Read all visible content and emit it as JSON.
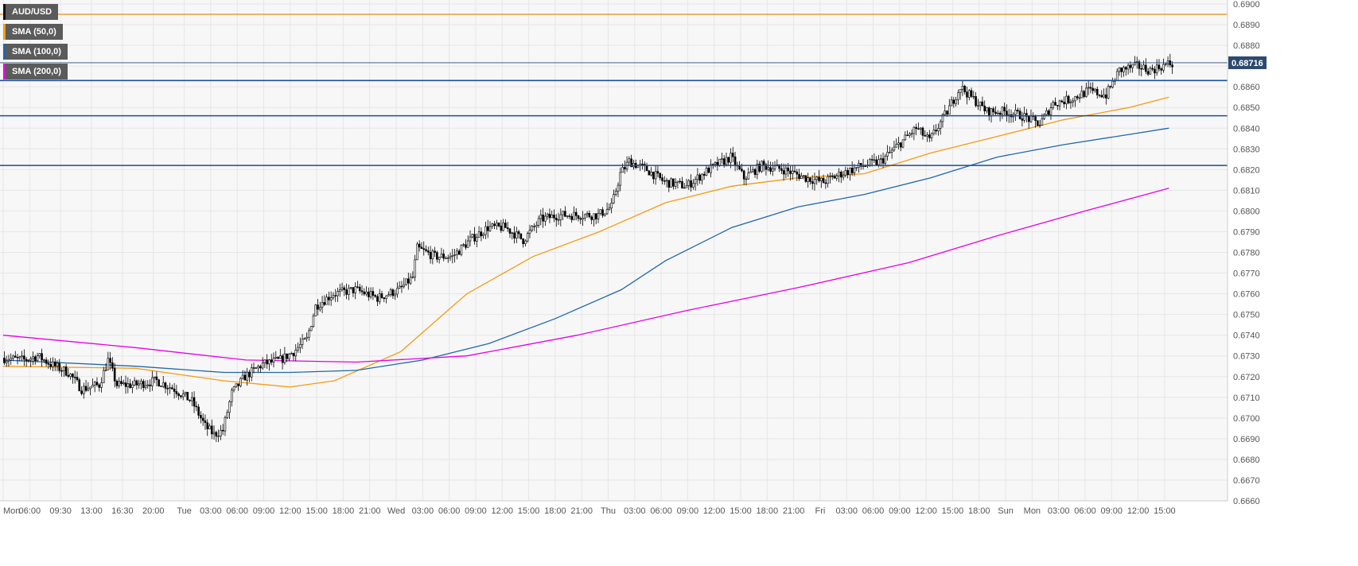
{
  "legend": [
    {
      "label": "AUD/USD",
      "color": "#111111"
    },
    {
      "label": "SMA (50,0)",
      "color": "#f39c12"
    },
    {
      "label": "SMA (100,0)",
      "color": "#2166ac"
    },
    {
      "label": "SMA (200,0)",
      "color": "#e600e6"
    }
  ],
  "price_tag": "0.68716",
  "colors": {
    "background": "#f7f7f7",
    "grid": "#e6e6e6",
    "candle_body_up": "#ffffff",
    "candle_body_down": "#000000",
    "candle_wick": "#000000",
    "sma50": "#f39c12",
    "sma100": "#2166ac",
    "sma200": "#e600e6",
    "resistance_line": "#1c4e94",
    "top_line": "#e8891a",
    "price_tag_bg": "#2c4a6e"
  },
  "chart_data": {
    "type": "candlestick",
    "title": "",
    "symbol": "AUD/USD",
    "ylim": [
      0.666,
      0.69
    ],
    "y_ticks": [
      "0.6660",
      "0.6670",
      "0.6680",
      "0.6690",
      "0.6700",
      "0.6710",
      "0.6720",
      "0.6730",
      "0.6740",
      "0.6750",
      "0.6760",
      "0.6770",
      "0.6780",
      "0.6790",
      "0.6800",
      "0.6810",
      "0.6820",
      "0.6830",
      "0.6840",
      "0.6850",
      "0.6860",
      "0.6870",
      "0.6880",
      "0.6890",
      "0.6900"
    ],
    "x_ticks": [
      "Mon",
      "06:00",
      "09:30",
      "13:00",
      "16:30",
      "20:00",
      "Tue",
      "03:00",
      "06:00",
      "09:00",
      "12:00",
      "15:00",
      "18:00",
      "21:00",
      "Wed",
      "03:00",
      "06:00",
      "09:00",
      "12:00",
      "15:00",
      "18:00",
      "21:00",
      "Thu",
      "03:00",
      "06:00",
      "09:00",
      "12:00",
      "15:00",
      "18:00",
      "21:00",
      "Fri",
      "03:00",
      "06:00",
      "09:00",
      "12:00",
      "15:00",
      "18:00",
      "Sun",
      "Mon",
      "03:00",
      "06:00",
      "09:00",
      "12:00",
      "15:00"
    ],
    "x_tick_index": [
      0,
      12,
      26,
      40,
      54,
      68,
      82,
      94,
      106,
      118,
      130,
      142,
      154,
      166,
      178,
      190,
      202,
      214,
      226,
      238,
      250,
      262,
      274,
      286,
      298,
      310,
      322,
      334,
      346,
      358,
      370,
      382,
      394,
      406,
      418,
      430,
      442,
      454,
      466,
      478,
      490,
      502,
      514,
      526
    ],
    "horizontal_lines": [
      {
        "value": 0.6895,
        "role": "top"
      },
      {
        "value": 0.6863,
        "role": "resistance"
      },
      {
        "value": 0.6846,
        "role": "support"
      },
      {
        "value": 0.6822,
        "role": "support"
      }
    ],
    "current_price": 0.68716,
    "anchors": [
      [
        0,
        0.6729
      ],
      [
        10,
        0.6728
      ],
      [
        16,
        0.673
      ],
      [
        22,
        0.6726
      ],
      [
        30,
        0.6722
      ],
      [
        36,
        0.6714
      ],
      [
        44,
        0.6716
      ],
      [
        48,
        0.6728
      ],
      [
        52,
        0.6716
      ],
      [
        60,
        0.6716
      ],
      [
        70,
        0.6718
      ],
      [
        78,
        0.6714
      ],
      [
        86,
        0.6708
      ],
      [
        92,
        0.6696
      ],
      [
        96,
        0.6692
      ],
      [
        100,
        0.6694
      ],
      [
        104,
        0.6712
      ],
      [
        110,
        0.672
      ],
      [
        118,
        0.6726
      ],
      [
        126,
        0.6728
      ],
      [
        132,
        0.6732
      ],
      [
        138,
        0.6738
      ],
      [
        142,
        0.6754
      ],
      [
        150,
        0.676
      ],
      [
        160,
        0.6762
      ],
      [
        170,
        0.6758
      ],
      [
        180,
        0.6762
      ],
      [
        186,
        0.6768
      ],
      [
        188,
        0.6782
      ],
      [
        196,
        0.6778
      ],
      [
        204,
        0.6778
      ],
      [
        212,
        0.6786
      ],
      [
        220,
        0.6792
      ],
      [
        228,
        0.6792
      ],
      [
        236,
        0.6786
      ],
      [
        244,
        0.6796
      ],
      [
        252,
        0.6798
      ],
      [
        262,
        0.6798
      ],
      [
        270,
        0.6798
      ],
      [
        276,
        0.6802
      ],
      [
        280,
        0.6818
      ],
      [
        284,
        0.6824
      ],
      [
        292,
        0.682
      ],
      [
        300,
        0.6814
      ],
      [
        310,
        0.6812
      ],
      [
        320,
        0.682
      ],
      [
        330,
        0.6826
      ],
      [
        336,
        0.6816
      ],
      [
        344,
        0.6822
      ],
      [
        354,
        0.682
      ],
      [
        364,
        0.6816
      ],
      [
        372,
        0.6814
      ],
      [
        380,
        0.6818
      ],
      [
        390,
        0.6822
      ],
      [
        398,
        0.6824
      ],
      [
        406,
        0.6832
      ],
      [
        414,
        0.684
      ],
      [
        420,
        0.6834
      ],
      [
        428,
        0.6848
      ],
      [
        434,
        0.686
      ],
      [
        440,
        0.6854
      ],
      [
        446,
        0.6848
      ],
      [
        454,
        0.6848
      ],
      [
        462,
        0.6846
      ],
      [
        470,
        0.6842
      ],
      [
        476,
        0.6852
      ],
      [
        484,
        0.6854
      ],
      [
        492,
        0.6858
      ],
      [
        500,
        0.6856
      ],
      [
        506,
        0.6868
      ],
      [
        514,
        0.687
      ],
      [
        520,
        0.6868
      ],
      [
        528,
        0.6871
      ]
    ],
    "sma50": [
      [
        0,
        0.6725
      ],
      [
        60,
        0.6724
      ],
      [
        100,
        0.6718
      ],
      [
        130,
        0.6715
      ],
      [
        150,
        0.6718
      ],
      [
        180,
        0.6732
      ],
      [
        210,
        0.676
      ],
      [
        240,
        0.6778
      ],
      [
        270,
        0.679
      ],
      [
        300,
        0.6804
      ],
      [
        330,
        0.6812
      ],
      [
        360,
        0.6816
      ],
      [
        390,
        0.6818
      ],
      [
        420,
        0.6828
      ],
      [
        450,
        0.6836
      ],
      [
        480,
        0.6844
      ],
      [
        510,
        0.685
      ],
      [
        528,
        0.6855
      ]
    ],
    "sma100": [
      [
        0,
        0.6728
      ],
      [
        60,
        0.6725
      ],
      [
        100,
        0.6722
      ],
      [
        130,
        0.6722
      ],
      [
        160,
        0.6723
      ],
      [
        190,
        0.6728
      ],
      [
        220,
        0.6736
      ],
      [
        250,
        0.6748
      ],
      [
        280,
        0.6762
      ],
      [
        300,
        0.6776
      ],
      [
        330,
        0.6792
      ],
      [
        360,
        0.6802
      ],
      [
        390,
        0.6808
      ],
      [
        420,
        0.6816
      ],
      [
        450,
        0.6826
      ],
      [
        480,
        0.6832
      ],
      [
        510,
        0.6837
      ],
      [
        528,
        0.684
      ]
    ],
    "sma200": [
      [
        0,
        0.674
      ],
      [
        60,
        0.6734
      ],
      [
        110,
        0.6728
      ],
      [
        160,
        0.6727
      ],
      [
        210,
        0.673
      ],
      [
        260,
        0.674
      ],
      [
        310,
        0.6752
      ],
      [
        360,
        0.6763
      ],
      [
        410,
        0.6775
      ],
      [
        450,
        0.6788
      ],
      [
        490,
        0.68
      ],
      [
        528,
        0.6811
      ]
    ]
  }
}
